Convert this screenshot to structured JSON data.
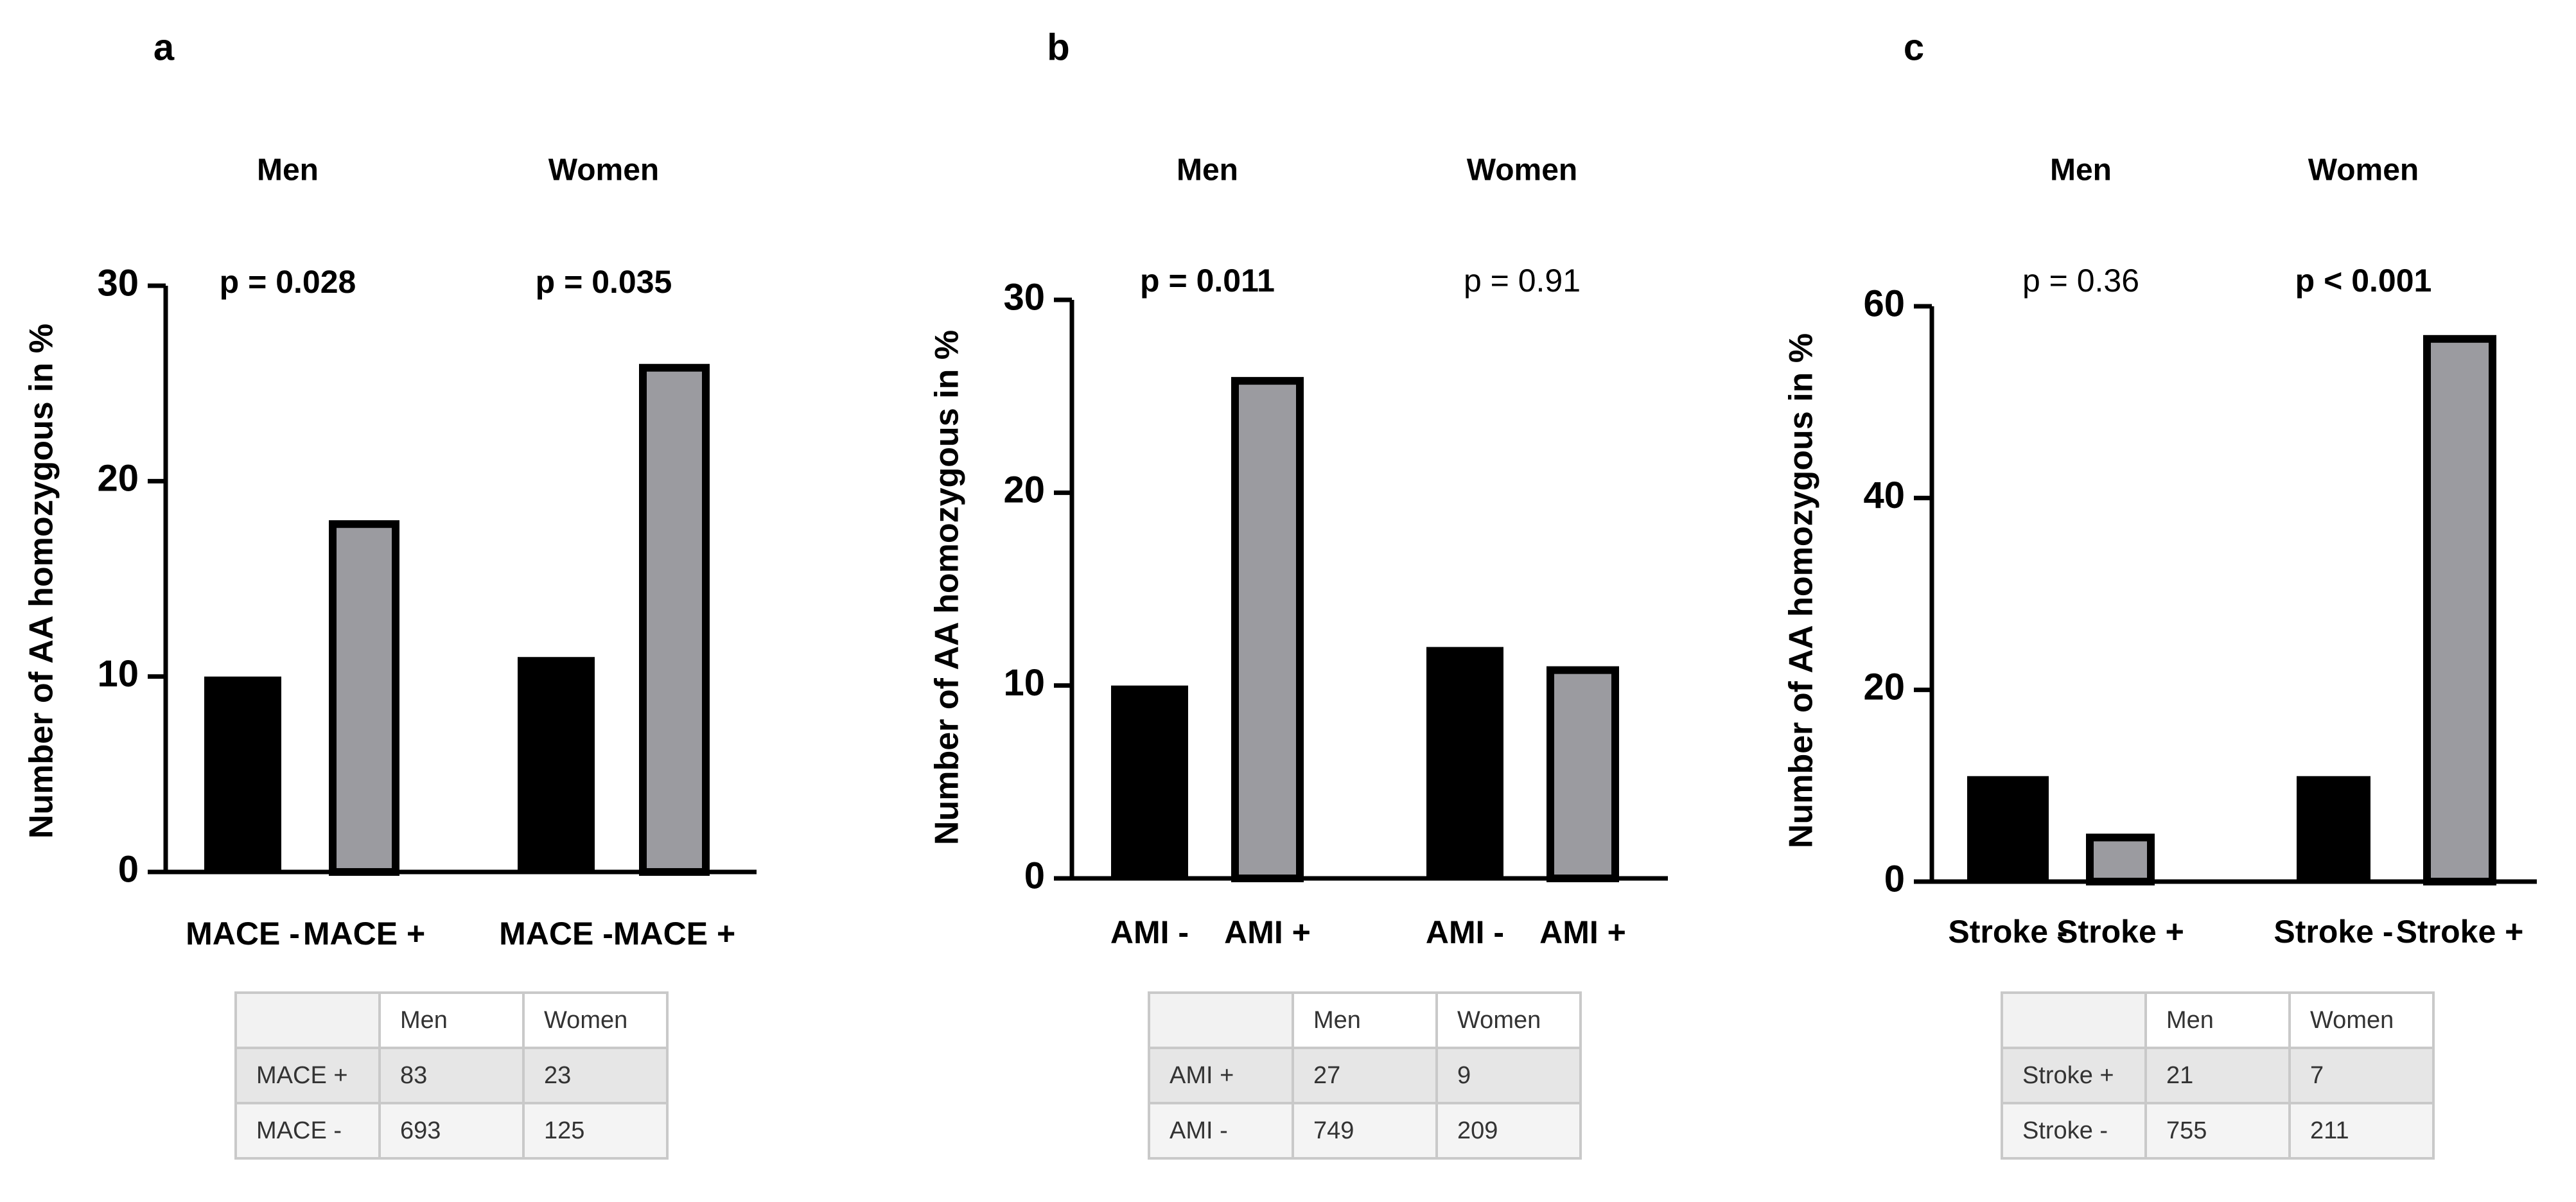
{
  "colors": {
    "bar_neg": "#000000",
    "bar_pos": "#9b9ba0",
    "axis": "#000000",
    "text": "#000000",
    "grid_border": "#c9c9c9"
  },
  "chart_data": [
    {
      "panel": "a",
      "type": "bar",
      "ylabel": "Number of AA homozygous in %",
      "ylim": [
        0,
        30
      ],
      "yticks": [
        0,
        10,
        20,
        30
      ],
      "groups": [
        {
          "name": "Men",
          "pvalue": "p = 0.028",
          "pbold": true,
          "bars": [
            {
              "label": "MACE -",
              "value": 10,
              "kind": "neg"
            },
            {
              "label": "MACE +",
              "value": 18,
              "kind": "pos"
            }
          ]
        },
        {
          "name": "Women",
          "pvalue": "p = 0.035",
          "pbold": true,
          "bars": [
            {
              "label": "MACE -",
              "value": 11,
              "kind": "neg"
            },
            {
              "label": "MACE +",
              "value": 26,
              "kind": "pos"
            }
          ]
        }
      ],
      "table": {
        "header": [
          "",
          "Men",
          "Women"
        ],
        "rows": [
          [
            "MACE +",
            "83",
            "23"
          ],
          [
            "MACE -",
            "693",
            "125"
          ]
        ]
      }
    },
    {
      "panel": "b",
      "type": "bar",
      "ylabel": "Number of AA homozygous in %",
      "ylim": [
        0,
        30
      ],
      "yticks": [
        0,
        10,
        20,
        30
      ],
      "groups": [
        {
          "name": "Men",
          "pvalue": "p = 0.011",
          "pbold": true,
          "bars": [
            {
              "label": "AMI -",
              "value": 10,
              "kind": "neg"
            },
            {
              "label": "AMI +",
              "value": 26,
              "kind": "pos"
            }
          ]
        },
        {
          "name": "Women",
          "pvalue": "p = 0.91",
          "pbold": false,
          "bars": [
            {
              "label": "AMI -",
              "value": 12,
              "kind": "neg"
            },
            {
              "label": "AMI +",
              "value": 11,
              "kind": "pos"
            }
          ]
        }
      ],
      "table": {
        "header": [
          "",
          "Men",
          "Women"
        ],
        "rows": [
          [
            "AMI +",
            "27",
            "9"
          ],
          [
            "AMI -",
            "749",
            "209"
          ]
        ]
      }
    },
    {
      "panel": "c",
      "type": "bar",
      "ylabel": "Number of AA homozygous in %",
      "ylim": [
        0,
        60
      ],
      "yticks": [
        0,
        20,
        40,
        60
      ],
      "groups": [
        {
          "name": "Men",
          "pvalue": "p = 0.36",
          "pbold": false,
          "bars": [
            {
              "label": "Stroke -",
              "value": 11,
              "kind": "neg"
            },
            {
              "label": "Stroke +",
              "value": 5,
              "kind": "pos"
            }
          ]
        },
        {
          "name": "Women",
          "pvalue": "p < 0.001",
          "pbold": true,
          "bars": [
            {
              "label": "Stroke -",
              "value": 11,
              "kind": "neg"
            },
            {
              "label": "Stroke +",
              "value": 57,
              "kind": "pos"
            }
          ]
        }
      ],
      "table": {
        "header": [
          "",
          "Men",
          "Women"
        ],
        "rows": [
          [
            "Stroke +",
            "21",
            "7"
          ],
          [
            "Stroke -",
            "755",
            "211"
          ]
        ]
      }
    }
  ]
}
